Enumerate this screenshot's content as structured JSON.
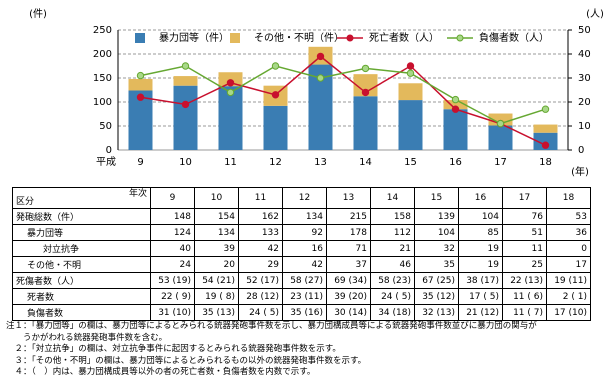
{
  "chart_data": {
    "type": "bar",
    "y_unit": "(件)",
    "y2_unit": "(人)",
    "x_prefix": "平成",
    "x_unit": "(年)",
    "categories": [
      "9",
      "10",
      "11",
      "12",
      "13",
      "14",
      "15",
      "16",
      "17",
      "18"
    ],
    "series": [
      {
        "name": "暴力団等（件）",
        "type": "bar",
        "color": "#3a7db3",
        "values": [
          124,
          134,
          133,
          92,
          178,
          112,
          104,
          85,
          51,
          36
        ]
      },
      {
        "name": "その他・不明（件）",
        "type": "bar",
        "color": "#e3b95c",
        "values": [
          24,
          20,
          29,
          42,
          37,
          46,
          35,
          19,
          25,
          17
        ]
      },
      {
        "name": "死亡者数（人）",
        "type": "line",
        "axis": "y2",
        "color": "#c8102e",
        "values": [
          22,
          19,
          28,
          23,
          39,
          24,
          35,
          17,
          11,
          2
        ]
      },
      {
        "name": "負傷者数（人）",
        "type": "line",
        "axis": "y2",
        "color": "#66a832",
        "values": [
          31,
          35,
          24,
          35,
          30,
          34,
          32,
          21,
          11,
          17
        ]
      }
    ],
    "ylim": [
      0,
      250
    ],
    "yticks": [
      0,
      50,
      100,
      150,
      200,
      250
    ],
    "y2lim": [
      0,
      50
    ],
    "y2ticks": [
      0,
      10,
      20,
      30,
      40,
      50
    ],
    "grid": true
  },
  "table": {
    "corner_top": "年次",
    "corner_bottom": "区分",
    "columns": [
      "9",
      "10",
      "11",
      "12",
      "13",
      "14",
      "15",
      "16",
      "17",
      "18"
    ],
    "rows": [
      {
        "label": "発砲総数（件）",
        "cells": [
          "148",
          "154",
          "162",
          "134",
          "215",
          "158",
          "139",
          "104",
          "76",
          "53"
        ]
      },
      {
        "label": "暴力団等",
        "cells": [
          "124",
          "134",
          "133",
          "92",
          "178",
          "112",
          "104",
          "85",
          "51",
          "36"
        ]
      },
      {
        "label": "対立抗争",
        "cells": [
          "40",
          "39",
          "42",
          "16",
          "71",
          "21",
          "32",
          "19",
          "11",
          "0"
        ]
      },
      {
        "label": "その他・不明",
        "cells": [
          "24",
          "20",
          "29",
          "42",
          "37",
          "46",
          "35",
          "19",
          "25",
          "17"
        ]
      },
      {
        "label": "死傷者数（人）",
        "cells": [
          "53 (19)",
          "54 (21)",
          "52 (17)",
          "58 (27)",
          "69 (34)",
          "58 (23)",
          "67 (25)",
          "38 (17)",
          "22 (13)",
          "19 (11)"
        ]
      },
      {
        "label": "死者数",
        "cells": [
          "22 ( 9)",
          "19 ( 8)",
          "28 (12)",
          "23 (11)",
          "39 (20)",
          "24 ( 5)",
          "35 (12)",
          "17 ( 5)",
          "11 ( 6)",
          "2 ( 1)"
        ]
      },
      {
        "label": "負傷者数",
        "cells": [
          "31 (10)",
          "35 (13)",
          "24 ( 5)",
          "35 (16)",
          "30 (14)",
          "34 (18)",
          "32 (13)",
          "21 (12)",
          "11 ( 7)",
          "17 (10)"
        ]
      }
    ]
  },
  "notes": [
    "注１：「暴力団等」の欄は、暴力団等によるとみられる銃器発砲事件数を示し、暴力団構成員等による銃器発砲事件数並びに暴力団の関与が",
    "　　うかがわれる銃器発砲事件数を含む。",
    "　２：「対立抗争」の欄は、対立抗争事件に起因するとみられる銃器発砲事件数を示す。",
    "　３：「その他・不明」の欄は、暴力団等によるとみられるもの以外の銃器発砲事件数を示す。",
    "　４：（　）内は、暴力団構成員等以外の者の死亡者数・負傷者数を内数で示す。"
  ]
}
